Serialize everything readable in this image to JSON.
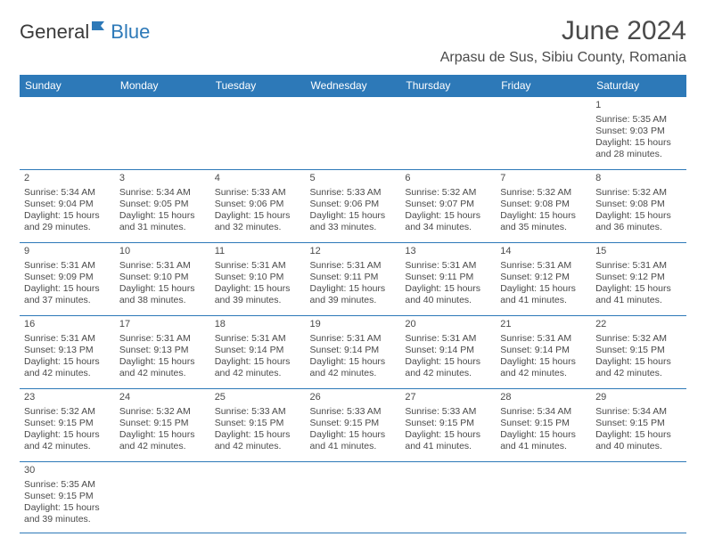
{
  "logo": {
    "part1": "General",
    "part2": "Blue"
  },
  "title": "June 2024",
  "location": "Arpasu de Sus, Sibiu County, Romania",
  "colors": {
    "header_bg": "#2d79b8",
    "header_fg": "#ffffff",
    "text": "#4a4a4a",
    "rule": "#2d79b8"
  },
  "weekdays": [
    "Sunday",
    "Monday",
    "Tuesday",
    "Wednesday",
    "Thursday",
    "Friday",
    "Saturday"
  ],
  "weeks": [
    [
      null,
      null,
      null,
      null,
      null,
      null,
      {
        "n": "1",
        "sr": "Sunrise: 5:35 AM",
        "ss": "Sunset: 9:03 PM",
        "d1": "Daylight: 15 hours",
        "d2": "and 28 minutes."
      }
    ],
    [
      {
        "n": "2",
        "sr": "Sunrise: 5:34 AM",
        "ss": "Sunset: 9:04 PM",
        "d1": "Daylight: 15 hours",
        "d2": "and 29 minutes."
      },
      {
        "n": "3",
        "sr": "Sunrise: 5:34 AM",
        "ss": "Sunset: 9:05 PM",
        "d1": "Daylight: 15 hours",
        "d2": "and 31 minutes."
      },
      {
        "n": "4",
        "sr": "Sunrise: 5:33 AM",
        "ss": "Sunset: 9:06 PM",
        "d1": "Daylight: 15 hours",
        "d2": "and 32 minutes."
      },
      {
        "n": "5",
        "sr": "Sunrise: 5:33 AM",
        "ss": "Sunset: 9:06 PM",
        "d1": "Daylight: 15 hours",
        "d2": "and 33 minutes."
      },
      {
        "n": "6",
        "sr": "Sunrise: 5:32 AM",
        "ss": "Sunset: 9:07 PM",
        "d1": "Daylight: 15 hours",
        "d2": "and 34 minutes."
      },
      {
        "n": "7",
        "sr": "Sunrise: 5:32 AM",
        "ss": "Sunset: 9:08 PM",
        "d1": "Daylight: 15 hours",
        "d2": "and 35 minutes."
      },
      {
        "n": "8",
        "sr": "Sunrise: 5:32 AM",
        "ss": "Sunset: 9:08 PM",
        "d1": "Daylight: 15 hours",
        "d2": "and 36 minutes."
      }
    ],
    [
      {
        "n": "9",
        "sr": "Sunrise: 5:31 AM",
        "ss": "Sunset: 9:09 PM",
        "d1": "Daylight: 15 hours",
        "d2": "and 37 minutes."
      },
      {
        "n": "10",
        "sr": "Sunrise: 5:31 AM",
        "ss": "Sunset: 9:10 PM",
        "d1": "Daylight: 15 hours",
        "d2": "and 38 minutes."
      },
      {
        "n": "11",
        "sr": "Sunrise: 5:31 AM",
        "ss": "Sunset: 9:10 PM",
        "d1": "Daylight: 15 hours",
        "d2": "and 39 minutes."
      },
      {
        "n": "12",
        "sr": "Sunrise: 5:31 AM",
        "ss": "Sunset: 9:11 PM",
        "d1": "Daylight: 15 hours",
        "d2": "and 39 minutes."
      },
      {
        "n": "13",
        "sr": "Sunrise: 5:31 AM",
        "ss": "Sunset: 9:11 PM",
        "d1": "Daylight: 15 hours",
        "d2": "and 40 minutes."
      },
      {
        "n": "14",
        "sr": "Sunrise: 5:31 AM",
        "ss": "Sunset: 9:12 PM",
        "d1": "Daylight: 15 hours",
        "d2": "and 41 minutes."
      },
      {
        "n": "15",
        "sr": "Sunrise: 5:31 AM",
        "ss": "Sunset: 9:12 PM",
        "d1": "Daylight: 15 hours",
        "d2": "and 41 minutes."
      }
    ],
    [
      {
        "n": "16",
        "sr": "Sunrise: 5:31 AM",
        "ss": "Sunset: 9:13 PM",
        "d1": "Daylight: 15 hours",
        "d2": "and 42 minutes."
      },
      {
        "n": "17",
        "sr": "Sunrise: 5:31 AM",
        "ss": "Sunset: 9:13 PM",
        "d1": "Daylight: 15 hours",
        "d2": "and 42 minutes."
      },
      {
        "n": "18",
        "sr": "Sunrise: 5:31 AM",
        "ss": "Sunset: 9:14 PM",
        "d1": "Daylight: 15 hours",
        "d2": "and 42 minutes."
      },
      {
        "n": "19",
        "sr": "Sunrise: 5:31 AM",
        "ss": "Sunset: 9:14 PM",
        "d1": "Daylight: 15 hours",
        "d2": "and 42 minutes."
      },
      {
        "n": "20",
        "sr": "Sunrise: 5:31 AM",
        "ss": "Sunset: 9:14 PM",
        "d1": "Daylight: 15 hours",
        "d2": "and 42 minutes."
      },
      {
        "n": "21",
        "sr": "Sunrise: 5:31 AM",
        "ss": "Sunset: 9:14 PM",
        "d1": "Daylight: 15 hours",
        "d2": "and 42 minutes."
      },
      {
        "n": "22",
        "sr": "Sunrise: 5:32 AM",
        "ss": "Sunset: 9:15 PM",
        "d1": "Daylight: 15 hours",
        "d2": "and 42 minutes."
      }
    ],
    [
      {
        "n": "23",
        "sr": "Sunrise: 5:32 AM",
        "ss": "Sunset: 9:15 PM",
        "d1": "Daylight: 15 hours",
        "d2": "and 42 minutes."
      },
      {
        "n": "24",
        "sr": "Sunrise: 5:32 AM",
        "ss": "Sunset: 9:15 PM",
        "d1": "Daylight: 15 hours",
        "d2": "and 42 minutes."
      },
      {
        "n": "25",
        "sr": "Sunrise: 5:33 AM",
        "ss": "Sunset: 9:15 PM",
        "d1": "Daylight: 15 hours",
        "d2": "and 42 minutes."
      },
      {
        "n": "26",
        "sr": "Sunrise: 5:33 AM",
        "ss": "Sunset: 9:15 PM",
        "d1": "Daylight: 15 hours",
        "d2": "and 41 minutes."
      },
      {
        "n": "27",
        "sr": "Sunrise: 5:33 AM",
        "ss": "Sunset: 9:15 PM",
        "d1": "Daylight: 15 hours",
        "d2": "and 41 minutes."
      },
      {
        "n": "28",
        "sr": "Sunrise: 5:34 AM",
        "ss": "Sunset: 9:15 PM",
        "d1": "Daylight: 15 hours",
        "d2": "and 41 minutes."
      },
      {
        "n": "29",
        "sr": "Sunrise: 5:34 AM",
        "ss": "Sunset: 9:15 PM",
        "d1": "Daylight: 15 hours",
        "d2": "and 40 minutes."
      }
    ],
    [
      {
        "n": "30",
        "sr": "Sunrise: 5:35 AM",
        "ss": "Sunset: 9:15 PM",
        "d1": "Daylight: 15 hours",
        "d2": "and 39 minutes."
      },
      null,
      null,
      null,
      null,
      null,
      null
    ]
  ]
}
